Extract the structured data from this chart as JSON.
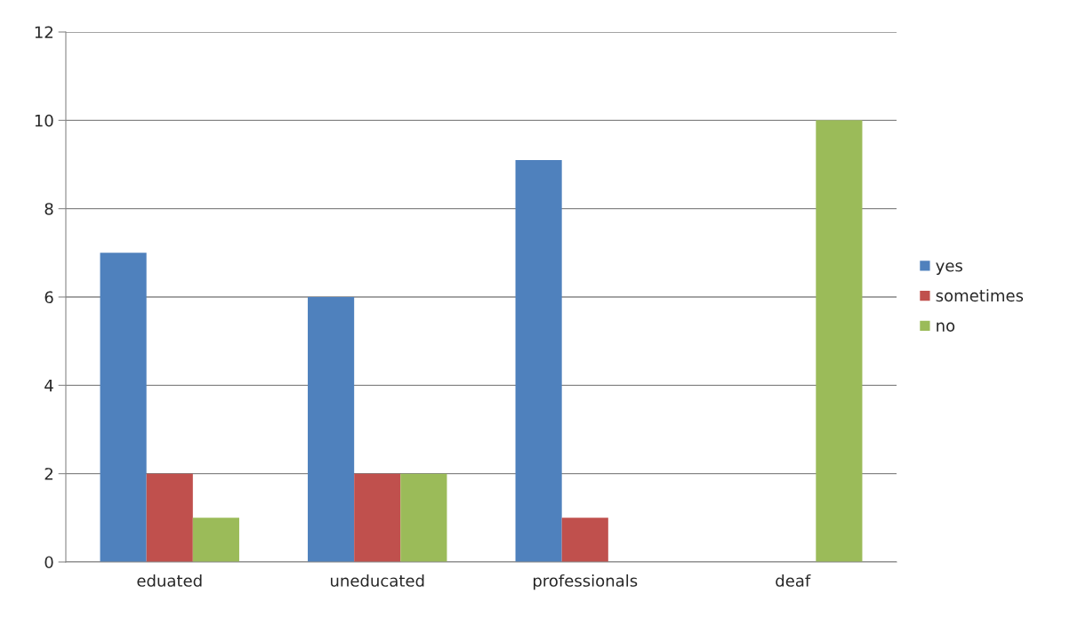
{
  "chart_data": {
    "type": "bar",
    "categories": [
      "eduated",
      "uneducated",
      "professionals",
      "deaf"
    ],
    "series": [
      {
        "name": "yes",
        "color": "#4f81bd",
        "values": [
          7,
          6,
          9.1,
          0
        ]
      },
      {
        "name": "sometimes",
        "color": "#c0504d",
        "values": [
          2,
          2,
          1,
          0
        ]
      },
      {
        "name": "no",
        "color": "#9bbb59",
        "values": [
          1,
          2,
          0,
          10
        ]
      }
    ],
    "ylim": [
      0,
      12
    ],
    "yticks": [
      0,
      2,
      4,
      6,
      8,
      10,
      12
    ],
    "grid": "y",
    "legend": "right"
  }
}
